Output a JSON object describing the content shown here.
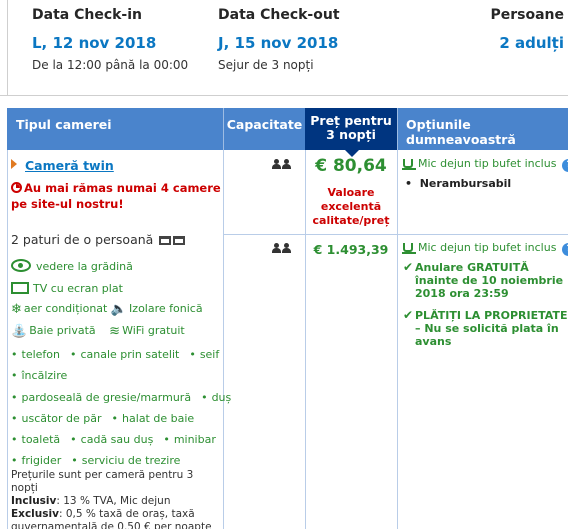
{
  "summary": {
    "checkin": {
      "label": "Data Check-in",
      "date": "L, 12 nov 2018",
      "time": "De la 12:00 până la 00:00"
    },
    "checkout": {
      "label": "Data Check-out",
      "date": "J, 15 nov 2018",
      "stay": "Sejur de 3 nopți"
    },
    "persons": {
      "label": "Persoane",
      "value": "2 adulți"
    }
  },
  "table": {
    "headers": {
      "room_type": "Tipul camerei",
      "capacity": "Capacitate",
      "price_line1": "Preț pentru",
      "price_line2": "3 nopți",
      "options": "Opțiunile dumneavoastră"
    },
    "room": {
      "name": "Cameră twin",
      "scarcity": "Au mai rămas numai 4 camere pe site-ul nostru!",
      "beds": "2 paturi de o persoană",
      "facilities": {
        "garden_view": "vedere la grădină",
        "tv": "TV cu ecran plat",
        "ac": "aer condiționat",
        "soundproof": "Izolare fonică",
        "bathroom": "Baie privată",
        "wifi": "WiFi gratuit",
        "phone": "telefon",
        "satellite": "canale prin satelit",
        "safe": "seif",
        "heating": "încălzire",
        "floor": "pardoseală de gresie/marmură",
        "shower": "duș",
        "hairdryer": "uscător de păr",
        "bathrobe": "halat de baie",
        "toilet": "toaletă",
        "tub": "cadă sau duș",
        "minibar": "minibar",
        "fridge": "frigider",
        "wakeup": "serviciu de trezire"
      },
      "notes": {
        "price_per_room": "Prețurile sunt per cameră pentru 3 nopți",
        "inclusive_label": "Inclusiv",
        "inclusive_text": ": 13 % TVA, Mic dejun",
        "exclusive_label": "Exclusiv",
        "exclusive_text": ": 0,5 % taxă de oraș, taxă guvernamentală de 0.50 € per noapte"
      }
    },
    "offers": [
      {
        "price": "€ 80,64",
        "value_label": "Valoare excelentă calitate/preț",
        "breakfast": "Mic dejun tip bufet inclus",
        "policy": "Nerambursabil"
      },
      {
        "price": "€ 1.493,39",
        "breakfast": "Mic dejun tip bufet inclus",
        "free_cancel": "Anulare GRATUITĂ înainte de 10 noiembrie 2018 ora 23:59",
        "pay_at_property": "PLĂTIȚI LA PROPRIETATE – Nu se solicită plata în avans"
      }
    ]
  },
  "colors": {
    "link_blue": "#0b77c2",
    "header_blue": "#4a84cc",
    "price_header": "#003580",
    "green": "#2d8f32",
    "red": "#cc0000"
  }
}
